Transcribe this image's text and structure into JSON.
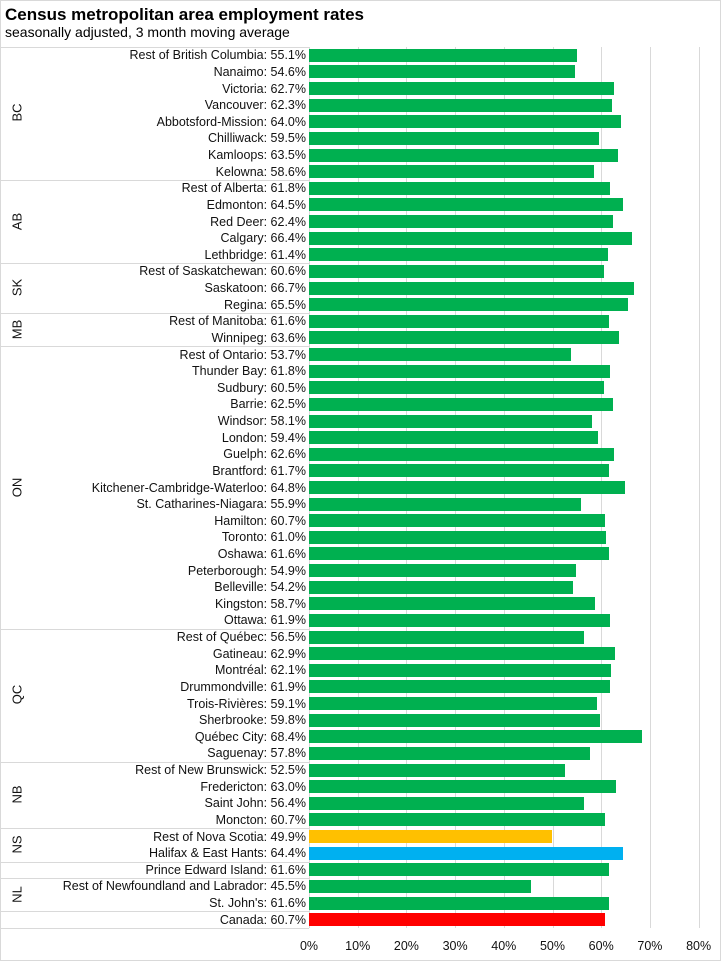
{
  "chart_data": {
    "type": "bar",
    "orientation": "horizontal",
    "title": "Census metropolitan area employment rates",
    "subtitle": "seasonally adjusted, 3 month moving average",
    "xlim": [
      0,
      80
    ],
    "x_ticks": [
      "0%",
      "10%",
      "20%",
      "30%",
      "40%",
      "50%",
      "60%",
      "70%",
      "80%"
    ],
    "grid": true,
    "colors": {
      "default": "#00B050",
      "nova_scotia_rest": "#FFC000",
      "halifax": "#00B0F0",
      "canada": "#FF0000"
    },
    "groups": [
      {
        "name": "BC",
        "rows": [
          [
            "Rest of British Columbia",
            55.1
          ],
          [
            "Nanaimo",
            54.6
          ],
          [
            "Victoria",
            62.7
          ],
          [
            "Vancouver",
            62.3
          ],
          [
            "Abbotsford-Mission",
            64.0
          ],
          [
            "Chilliwack",
            59.5
          ],
          [
            "Kamloops",
            63.5
          ],
          [
            "Kelowna",
            58.6
          ]
        ]
      },
      {
        "name": "AB",
        "rows": [
          [
            "Rest of Alberta",
            61.8
          ],
          [
            "Edmonton",
            64.5
          ],
          [
            "Red Deer",
            62.4
          ],
          [
            "Calgary",
            66.4
          ],
          [
            "Lethbridge",
            61.4
          ]
        ]
      },
      {
        "name": "SK",
        "rows": [
          [
            "Rest of Saskatchewan",
            60.6
          ],
          [
            "Saskatoon",
            66.7
          ],
          [
            "Regina",
            65.5
          ]
        ]
      },
      {
        "name": "MB",
        "rows": [
          [
            "Rest of Manitoba",
            61.6
          ],
          [
            "Winnipeg",
            63.6
          ]
        ]
      },
      {
        "name": "ON",
        "rows": [
          [
            "Rest of Ontario",
            53.7
          ],
          [
            "Thunder Bay",
            61.8
          ],
          [
            "Sudbury",
            60.5
          ],
          [
            "Barrie",
            62.5
          ],
          [
            "Windsor",
            58.1
          ],
          [
            "London",
            59.4
          ],
          [
            "Guelph",
            62.6
          ],
          [
            "Brantford",
            61.7
          ],
          [
            "Kitchener-Cambridge-Waterloo",
            64.8
          ],
          [
            "St. Catharines-Niagara",
            55.9
          ],
          [
            "Hamilton",
            60.7
          ],
          [
            "Toronto",
            61.0
          ],
          [
            "Oshawa",
            61.6
          ],
          [
            "Peterborough",
            54.9
          ],
          [
            "Belleville",
            54.2
          ],
          [
            "Kingston",
            58.7
          ],
          [
            "Ottawa",
            61.9
          ]
        ]
      },
      {
        "name": "QC",
        "rows": [
          [
            "Rest of Québec",
            56.5
          ],
          [
            "Gatineau",
            62.9
          ],
          [
            "Montréal",
            62.1
          ],
          [
            "Drummondville",
            61.9
          ],
          [
            "Trois-Rivières",
            59.1
          ],
          [
            "Sherbrooke",
            59.8
          ],
          [
            "Québec City",
            68.4
          ],
          [
            "Saguenay",
            57.8
          ]
        ]
      },
      {
        "name": "NB",
        "rows": [
          [
            "Rest of New Brunswick",
            52.5
          ],
          [
            "Fredericton",
            63.0
          ],
          [
            "Saint John",
            56.4
          ],
          [
            "Moncton",
            60.7
          ]
        ]
      },
      {
        "name": "NS",
        "rows": [
          [
            "Rest of Nova Scotia",
            49.9,
            "#FFC000"
          ],
          [
            "Halifax & East Hants",
            64.4,
            "#00B0F0"
          ]
        ]
      },
      {
        "name": "",
        "rows": [
          [
            "Prince Edward Island",
            61.6
          ]
        ]
      },
      {
        "name": "NL",
        "rows": [
          [
            "Rest of Newfoundland and Labrador",
            45.5
          ],
          [
            "St. John's",
            61.6
          ]
        ]
      },
      {
        "name": "",
        "rows": [
          [
            "Canada",
            60.7,
            "#FF0000"
          ]
        ]
      }
    ]
  }
}
